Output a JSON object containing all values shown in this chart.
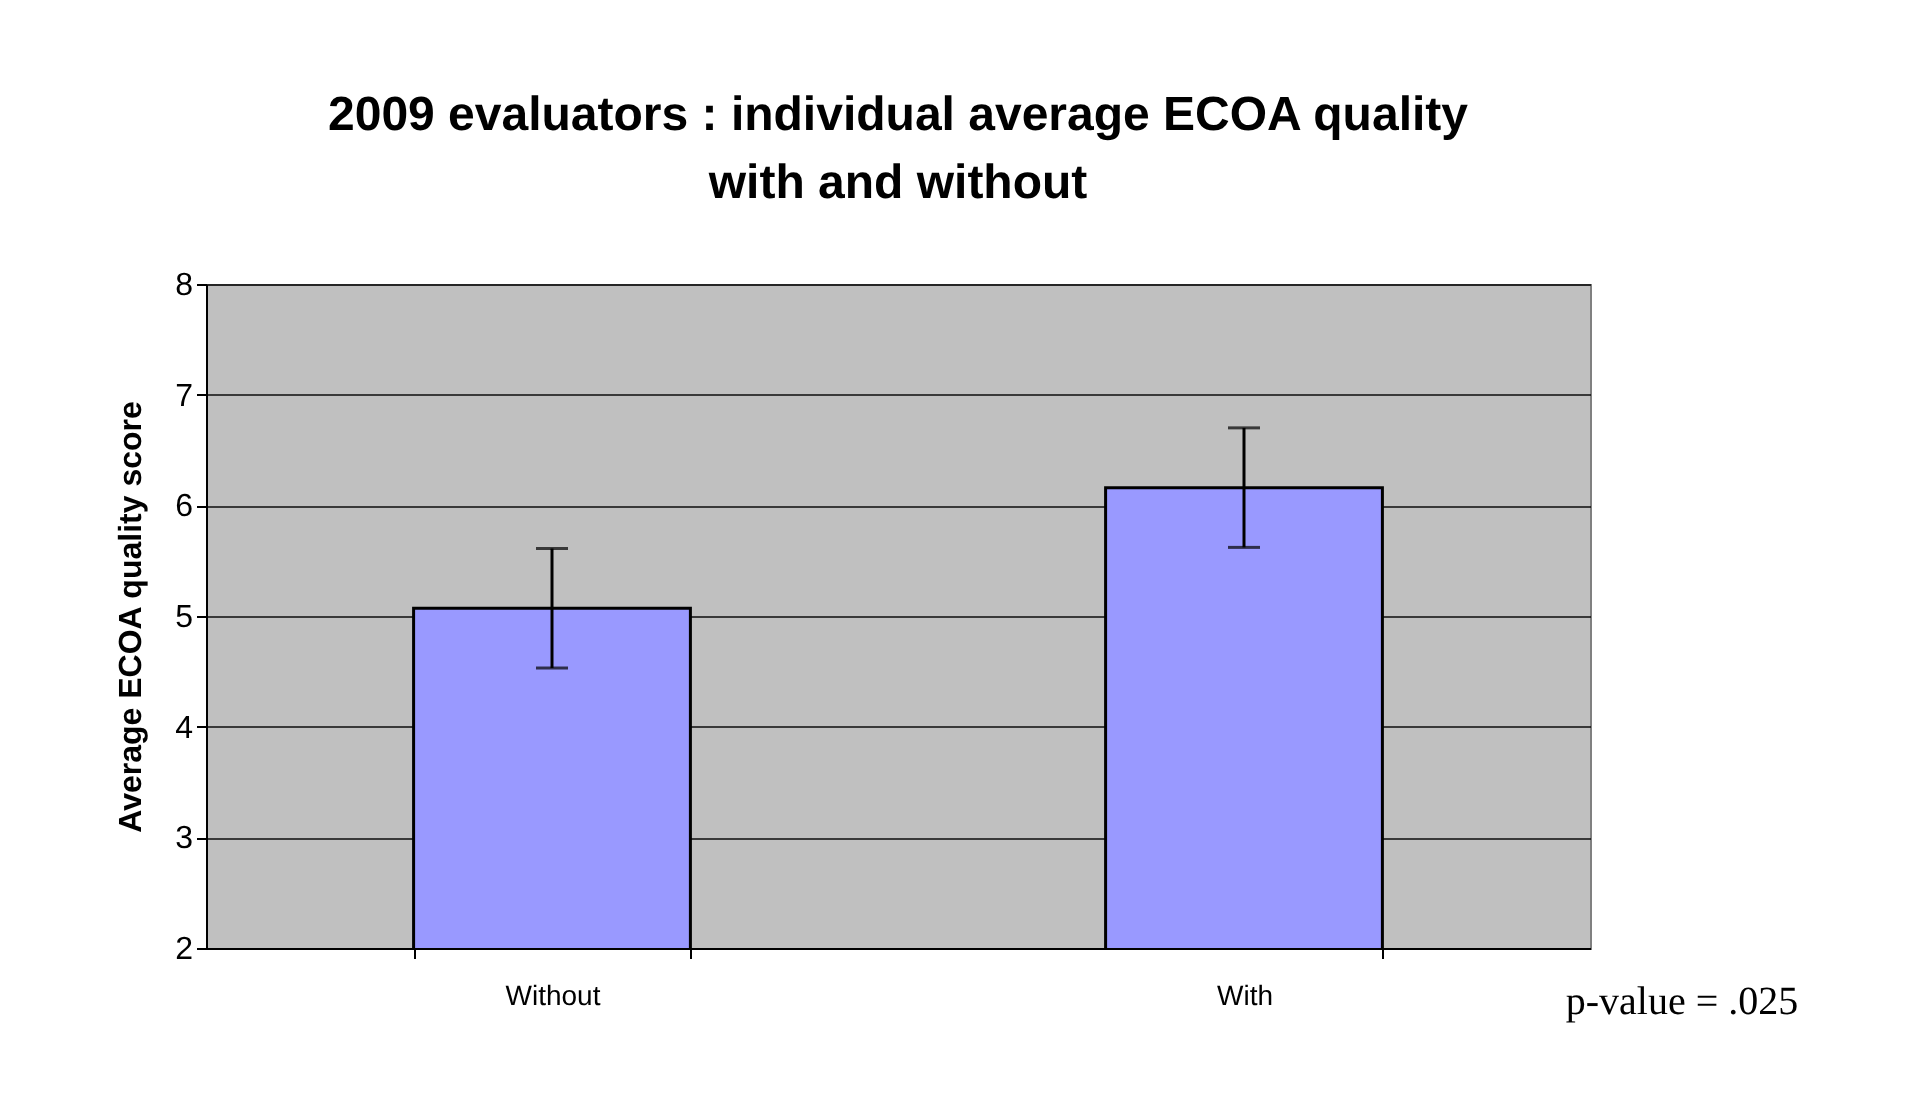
{
  "chart_data": {
    "type": "bar",
    "title": "2009 evaluators : individual average ECOA quality\nwith and without",
    "ylabel": "Average ECOA quality score",
    "categories": [
      "Without",
      "With"
    ],
    "values": [
      5.07,
      6.16
    ],
    "errors": [
      0.54,
      0.54
    ],
    "color": "#9999ff",
    "ylim": [
      2,
      8
    ],
    "yticks": [
      2,
      3,
      4,
      5,
      6,
      7,
      8
    ],
    "grid": "y",
    "annotations": [
      "p-value = .025"
    ]
  }
}
